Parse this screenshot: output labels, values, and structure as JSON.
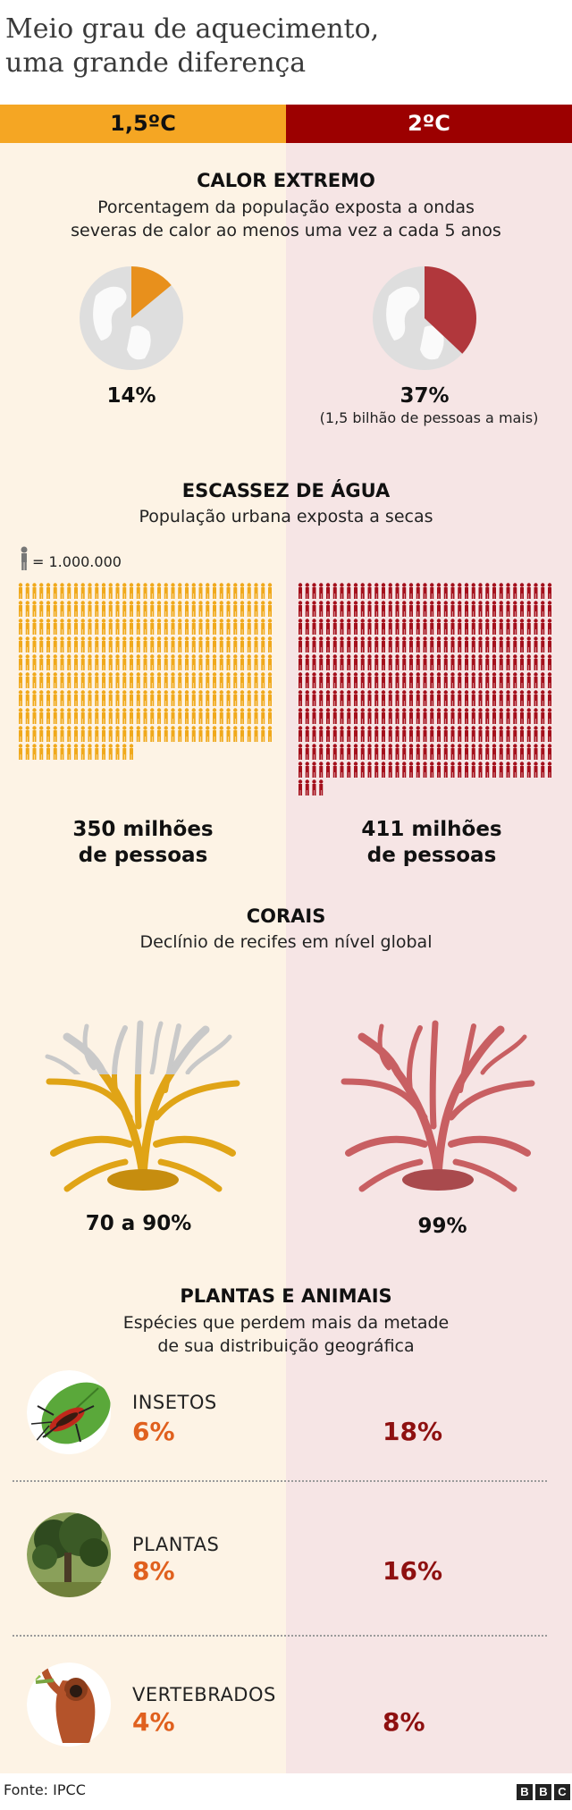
{
  "title_line1": "Meio grau de aquecimento,",
  "title_line2": "uma grande diferença",
  "headers": {
    "left": "1,5ºC",
    "right": "2ºC"
  },
  "colors": {
    "orange": "#f5a623",
    "dark_red": "#9c0000",
    "left_bg": "#fdf3e5",
    "right_bg": "#f6e5e5",
    "pct_orange": "#e0601e",
    "pct_red": "#8e1010"
  },
  "heat": {
    "title": "CALOR EXTREMO",
    "subtitle_line1": "Porcentagem da população exposta a ondas",
    "subtitle_line2": "severas de calor ao menos uma vez a cada 5 anos",
    "left_value": "14%",
    "right_value": "37%",
    "right_note": "(1,5 bilhão de pessoas a mais)",
    "left_fraction": 0.14,
    "right_fraction": 0.37
  },
  "water": {
    "title": "ESCASSEZ DE ÁGUA",
    "subtitle": "População urbana exposta a secas",
    "legend": "= 1.000.000",
    "left_count": 350,
    "right_count": 411,
    "left_line1": "350 milhões",
    "left_line2": "de pessoas",
    "right_line1": "411 milhões",
    "right_line2": "de pessoas"
  },
  "corals": {
    "title": "CORAIS",
    "subtitle": "Declínio de recifes em nível global",
    "left_value": "70 a 90%",
    "right_value": "99%",
    "left_decline_fraction": 0.8,
    "right_decline_fraction": 0.99
  },
  "species": {
    "title": "PLANTAS E ANIMAIS",
    "subtitle_line1": "Espécies que perdem mais da metade",
    "subtitle_line2": "de sua distribuição geográfica",
    "rows": [
      {
        "label": "INSETOS",
        "left": "6%",
        "right": "18%",
        "icon": "insect-icon"
      },
      {
        "label": "PLANTAS",
        "left": "8%",
        "right": "16%",
        "icon": "tree-icon"
      },
      {
        "label": "VERTEBRADOS",
        "left": "4%",
        "right": "8%",
        "icon": "orangutan-icon"
      }
    ]
  },
  "footer": {
    "source": "Fonte: IPCC",
    "logo": [
      "B",
      "B",
      "C"
    ]
  }
}
